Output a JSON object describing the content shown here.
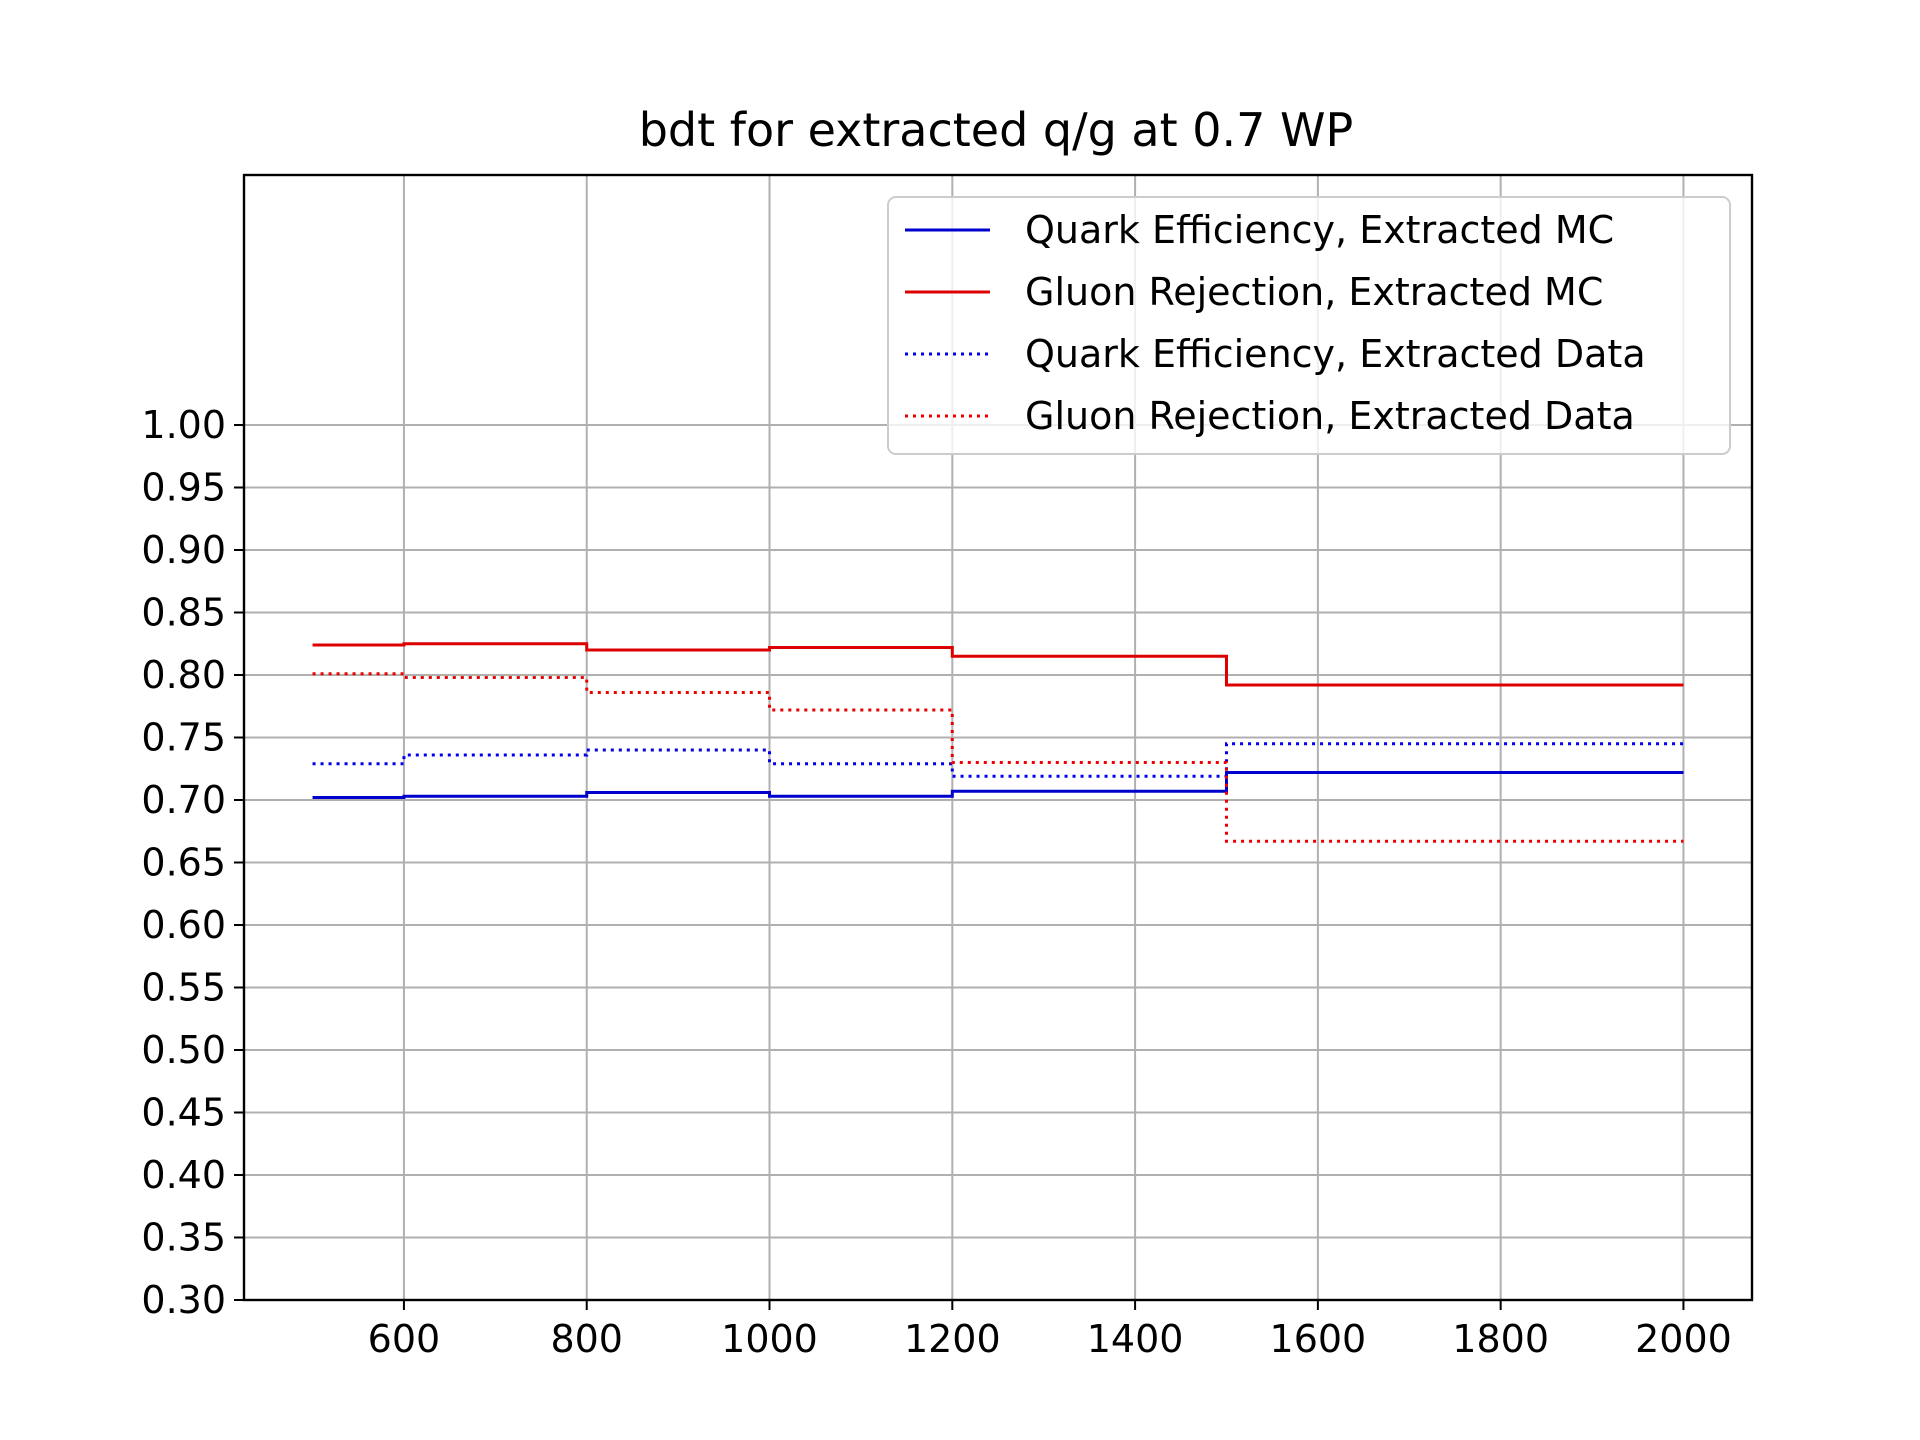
{
  "chart_data": {
    "type": "line",
    "title": "bdt for extracted q/g at 0.7 WP",
    "xlabel": "",
    "ylabel": "",
    "xlim": [
      425,
      2075
    ],
    "ylim": [
      0.3,
      1.2
    ],
    "xticks": [
      600,
      800,
      1000,
      1200,
      1400,
      1600,
      1800,
      2000
    ],
    "xtick_labels": [
      "600",
      "800",
      "1000",
      "1200",
      "1400",
      "1600",
      "1800",
      "2000"
    ],
    "yticks": [
      0.3,
      0.35,
      0.4,
      0.45,
      0.5,
      0.55,
      0.6,
      0.65,
      0.7,
      0.75,
      0.8,
      0.85,
      0.9,
      0.95,
      1.0
    ],
    "ytick_labels": [
      "0.30",
      "0.35",
      "0.40",
      "0.45",
      "0.50",
      "0.55",
      "0.60",
      "0.65",
      "0.70",
      "0.75",
      "0.80",
      "0.85",
      "0.90",
      "0.95",
      "1.00"
    ],
    "grid": true,
    "legend_position": "top-right",
    "step": "post",
    "x": [
      500,
      600,
      800,
      1000,
      1200,
      1500,
      2000
    ],
    "series": [
      {
        "name": "Quark Efficiency, Extracted MC",
        "color": "#0000cc",
        "linestyle": "solid",
        "values": [
          0.702,
          0.703,
          0.706,
          0.703,
          0.707,
          0.722,
          0.722
        ]
      },
      {
        "name": "Gluon Rejection, Extracted MC",
        "color": "#dd0000",
        "linestyle": "solid",
        "values": [
          0.824,
          0.825,
          0.82,
          0.822,
          0.815,
          0.792,
          0.792
        ]
      },
      {
        "name": "Quark Efficiency, Extracted Data",
        "color": "#0000ee",
        "linestyle": "dotted",
        "values": [
          0.729,
          0.736,
          0.74,
          0.729,
          0.719,
          0.745,
          0.745
        ]
      },
      {
        "name": "Gluon Rejection, Extracted Data",
        "color": "#ee0000",
        "linestyle": "dotted",
        "values": [
          0.801,
          0.798,
          0.786,
          0.772,
          0.73,
          0.667,
          0.667
        ]
      }
    ]
  }
}
